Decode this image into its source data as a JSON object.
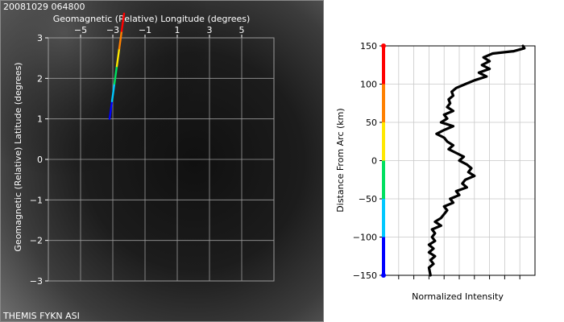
{
  "chart_data": [
    {
      "type": "line",
      "panel": "all-sky image with magnetic grid",
      "timestamp": "20081029 064800",
      "xlabel": "Geomagnetic (Relative) Longitude (degrees)",
      "ylabel": "Geomagnetic (Relative) Latitude (degrees)",
      "xlim": [
        -7,
        7
      ],
      "ylim": [
        -3,
        3
      ],
      "x_ticks": [
        -5,
        -3,
        -1,
        1,
        3,
        5
      ],
      "x_tick_labels": [
        "−5",
        "−3",
        "−1",
        "1",
        "3",
        "5"
      ],
      "y_ticks": [
        3,
        2,
        1,
        0,
        -1,
        -2,
        -3
      ],
      "y_tick_labels": [
        "3",
        "2",
        "1",
        "0",
        "−1",
        "−2",
        "−3"
      ],
      "grid": true,
      "series": [
        {
          "x": [
            -3.2,
            -2.3
          ],
          "y": [
            1.0,
            3.6
          ]
        }
      ],
      "line_colors": [
        "#0000ff",
        "#00c8ff",
        "#00e060",
        "#ffe800",
        "#ff8000",
        "#ff0000"
      ],
      "footer": "THEMIS FYKN ASI"
    },
    {
      "type": "line",
      "panel": "intensity profile",
      "xlabel": "Normalized Intensity",
      "ylabel": "Distance From Arc (km)",
      "ylim": [
        -150,
        150
      ],
      "y_ticks": [
        150,
        100,
        50,
        0,
        -50,
        -100,
        -150
      ],
      "y_tick_labels": [
        "150",
        "100",
        "50",
        "0",
        "−50",
        "−100",
        "−150"
      ],
      "xlim": [
        0,
        1
      ],
      "grid": true,
      "series": [
        {
          "x": [
            0.92,
            0.93,
            0.86,
            0.72,
            0.66,
            0.7,
            0.65,
            0.7,
            0.63,
            0.68,
            0.6,
            0.54,
            0.48,
            0.45,
            0.46,
            0.43,
            0.44,
            0.42,
            0.46,
            0.4,
            0.42,
            0.38,
            0.46,
            0.4,
            0.35,
            0.4,
            0.42,
            0.46,
            0.43,
            0.48,
            0.53,
            0.5,
            0.55,
            0.58,
            0.56,
            0.6,
            0.54,
            0.52,
            0.55,
            0.48,
            0.5,
            0.44,
            0.46,
            0.4,
            0.42,
            0.4,
            0.38,
            0.34,
            0.38,
            0.32,
            0.34,
            0.32,
            0.34,
            0.3,
            0.33,
            0.3,
            0.34,
            0.31,
            0.33,
            0.3,
            0.31
          ],
          "y": [
            150,
            147,
            143,
            140,
            135,
            130,
            125,
            120,
            115,
            110,
            105,
            100,
            95,
            90,
            85,
            80,
            75,
            70,
            65,
            60,
            55,
            50,
            45,
            40,
            35,
            30,
            25,
            20,
            15,
            10,
            5,
            0,
            -5,
            -10,
            -15,
            -20,
            -25,
            -30,
            -35,
            -40,
            -45,
            -50,
            -55,
            -60,
            -65,
            -70,
            -75,
            -80,
            -85,
            -90,
            -95,
            -100,
            -105,
            -110,
            -115,
            -120,
            -125,
            -130,
            -135,
            -140,
            -150
          ]
        }
      ],
      "axis_color_bar": [
        "#ff0000",
        "#ff8000",
        "#ffe800",
        "#00e060",
        "#00c8ff",
        "#0000ff"
      ]
    }
  ]
}
